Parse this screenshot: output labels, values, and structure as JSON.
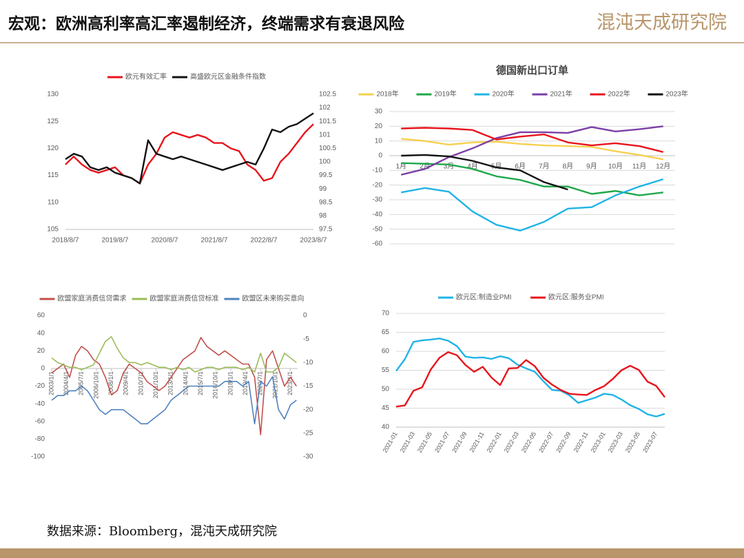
{
  "header": {
    "title": "宏观：欧洲高利率高汇率遏制经济，终端需求有衰退风险",
    "logo": "混沌天成研究院"
  },
  "footer": {
    "source": "数据来源：Bloomberg，混沌天成研究院"
  },
  "chart_data": [
    {
      "type": "line",
      "categories": [
        "2018/8/7",
        null,
        null,
        null,
        null,
        null,
        "2019/8/7",
        null,
        null,
        null,
        null,
        null,
        "2020/8/7",
        null,
        null,
        null,
        null,
        null,
        "2021/8/7",
        null,
        null,
        null,
        null,
        null,
        "2022/8/7",
        null,
        null,
        null,
        null,
        null,
        "2023/8/7"
      ],
      "series": [
        {
          "name": "欧元有效汇率",
          "color": "#e8141b",
          "values": [
            117,
            118.5,
            117,
            116,
            115.5,
            116,
            116.5,
            115,
            114.5,
            113.5,
            117,
            119,
            122,
            123,
            122.5,
            122,
            122.5,
            122,
            121,
            121,
            120,
            119.5,
            117,
            116,
            114,
            114.5,
            117.5,
            119,
            121,
            123,
            124.5
          ]
        },
        {
          "name": "高盛欧元区金融条件指数",
          "color": "#111111",
          "axis": "y2",
          "values": [
            100.1,
            100.3,
            100.2,
            99.8,
            99.7,
            99.8,
            99.6,
            99.5,
            99.4,
            99.2,
            100.8,
            100.3,
            100.2,
            100.1,
            100.2,
            100.1,
            100.0,
            99.9,
            99.8,
            99.7,
            99.8,
            99.9,
            100,
            99.9,
            100.5,
            101.2,
            101.1,
            101.3,
            101.4,
            101.6,
            101.8
          ]
        }
      ],
      "ylim": [
        105,
        130
      ],
      "yticks": [
        105,
        110,
        115,
        120,
        125,
        130
      ],
      "y2lim": [
        97.5,
        102.5
      ],
      "y2ticks": [
        97.5,
        98,
        98.5,
        99,
        99.5,
        100,
        100.5,
        101,
        101.5,
        102,
        102.5
      ],
      "grid": false
    },
    {
      "type": "line",
      "title": "德国新出口订单",
      "categories": [
        "1月",
        "2月",
        "3月",
        "4月",
        "5月",
        "6月",
        "7月",
        "8月",
        "9月",
        "10月",
        "11月",
        "12月"
      ],
      "series": [
        {
          "name": "2018年",
          "color": "#f7d04f",
          "values": [
            11.5,
            10,
            7.5,
            9,
            9.5,
            8,
            7,
            6.5,
            6,
            3,
            0.5,
            -2.5
          ]
        },
        {
          "name": "2019年",
          "color": "#1fa84a",
          "values": [
            -5,
            -5.5,
            -6,
            -9,
            -14,
            -16.5,
            -21,
            -21,
            -26,
            -24,
            -27,
            -25
          ]
        },
        {
          "name": "2020年",
          "color": "#1fb4e6",
          "values": [
            -25,
            -22,
            -24.5,
            -38,
            -47,
            -51,
            -45,
            -36,
            -35,
            -27,
            -21,
            -16
          ]
        },
        {
          "name": "2021年",
          "color": "#7b3fa8",
          "values": [
            -13,
            -9,
            -1,
            5,
            12,
            16,
            16,
            15.5,
            19.5,
            16.5,
            18,
            20
          ]
        },
        {
          "name": "2022年",
          "color": "#e8141b",
          "values": [
            18.5,
            19,
            18.5,
            17.5,
            11,
            13,
            14.5,
            9,
            7,
            8.5,
            6.5,
            2.5
          ]
        },
        {
          "name": "2023年",
          "color": "#111111",
          "values": [
            0,
            0.5,
            -0.5,
            -3.5,
            -8,
            -10,
            -18,
            -23,
            null,
            null,
            null,
            null
          ]
        }
      ],
      "ylim": [
        -60,
        30
      ],
      "yticks": [
        -60,
        -50,
        -40,
        -30,
        -20,
        -10,
        0,
        10,
        20,
        30
      ],
      "grid": true
    },
    {
      "type": "line",
      "x": [
        2003,
        2003.5,
        2004,
        2004.5,
        2005,
        2005.5,
        2006,
        2006.5,
        2007,
        2007.5,
        2008,
        2008.5,
        2009,
        2009.5,
        2010,
        2010.5,
        2011,
        2011.5,
        2012,
        2012.5,
        2013,
        2013.5,
        2014,
        2014.5,
        2015,
        2015.5,
        2016,
        2016.5,
        2017,
        2017.5,
        2018,
        2018.5,
        2019,
        2019.5,
        2020,
        2020.5,
        2021,
        2021.5,
        2022,
        2022.5,
        2023,
        2023.5
      ],
      "xlim": [
        2003,
        2023.6
      ],
      "xticks": [
        {
          "value": 2003,
          "label": "2003/1/1"
        },
        {
          "value": 2004.25,
          "label": "2004/4/1"
        },
        {
          "value": 2005.5,
          "label": "2005/7/1"
        },
        {
          "value": 2006.75,
          "label": "2006/10/1"
        },
        {
          "value": 2008,
          "label": "2008/1/1"
        },
        {
          "value": 2009.25,
          "label": "2009/4/1"
        },
        {
          "value": 2010.5,
          "label": "2010/7/1"
        },
        {
          "value": 2011.75,
          "label": "2011/10/1"
        },
        {
          "value": 2013,
          "label": "2013/1/1"
        },
        {
          "value": 2014.25,
          "label": "2014/4/1"
        },
        {
          "value": 2015.5,
          "label": "2015/7/1"
        },
        {
          "value": 2016.75,
          "label": "2016/10/1"
        },
        {
          "value": 2018,
          "label": "2018/1/1"
        },
        {
          "value": 2019.25,
          "label": "2019/4/1"
        },
        {
          "value": 2020.5,
          "label": "2020/7/1"
        },
        {
          "value": 2021.75,
          "label": "2021/10/1"
        },
        {
          "value": 2023,
          "label": "2023/1/1"
        }
      ],
      "series": [
        {
          "name": "欧盟家庭消费信贷需求",
          "color": "#c0504d",
          "values": [
            -5,
            0,
            5,
            -10,
            15,
            25,
            20,
            10,
            5,
            -10,
            -30,
            -25,
            -5,
            5,
            0,
            -5,
            -15,
            -20,
            -25,
            -20,
            -10,
            0,
            10,
            15,
            20,
            35,
            25,
            20,
            15,
            20,
            15,
            10,
            5,
            5,
            -10,
            -75,
            10,
            20,
            0,
            -20,
            -10,
            -20
          ]
        },
        {
          "name": "欧盟家庭消费信贷标准",
          "color": "#9bbb59",
          "axis": "y2",
          "values": [
            -9,
            -10,
            -10.5,
            -11,
            -11,
            -11.5,
            -11,
            -10.5,
            -8,
            -5.5,
            -4.5,
            -7,
            -9,
            -10,
            -10,
            -10.5,
            -10,
            -10.5,
            -11,
            -11,
            -11.5,
            -11,
            -11.5,
            -11,
            -12,
            -11.5,
            -11,
            -11,
            -11.5,
            -11,
            -11,
            -11,
            -11.5,
            -11,
            -12,
            -8,
            -12,
            -12,
            -11,
            -8,
            -9,
            -10
          ]
        },
        {
          "name": "欧盟区未来购买意向",
          "color": "#4f81bd",
          "axis": "y2",
          "values": [
            -18,
            -17,
            -17,
            -16,
            -16,
            -15,
            -16,
            -18,
            -20,
            -21,
            -20,
            -20,
            -20,
            -21,
            -22,
            -23,
            -23,
            -22,
            -21,
            -20,
            -18,
            -17,
            -16,
            -15,
            -15,
            -15,
            -15,
            -15,
            -15,
            -14,
            -14,
            -14,
            -15,
            -14,
            -23,
            -14,
            -15,
            -13,
            -20,
            -22,
            -19,
            -18
          ]
        }
      ],
      "ylim": [
        -100,
        60
      ],
      "yticks": [
        -100,
        -80,
        -60,
        -40,
        -20,
        0,
        20,
        40,
        60
      ],
      "y2lim": [
        -30,
        0
      ],
      "y2ticks": [
        -30,
        -25,
        -20,
        -15,
        -10,
        -5,
        0
      ],
      "grid": false
    },
    {
      "type": "line",
      "categories": [
        "2021-01",
        null,
        "2021-03",
        null,
        "2021-05",
        null,
        "2021-07",
        null,
        "2021-09",
        null,
        "2021-11",
        null,
        "2022-01",
        null,
        "2022-03",
        null,
        "2022-05",
        null,
        "2022-07",
        null,
        "2022-09",
        null,
        "2022-11",
        null,
        "2023-01",
        null,
        "2023-03",
        null,
        "2023-05",
        null,
        "2023-07",
        null
      ],
      "series": [
        {
          "name": "欧元区:制造业PMI",
          "color": "#1fb4e6",
          "values": [
            54.8,
            57.9,
            62.5,
            62.9,
            63.1,
            63.4,
            62.8,
            61.4,
            58.6,
            58.3,
            58.4,
            58.0,
            58.7,
            58.2,
            56.5,
            55.5,
            54.6,
            52.1,
            49.8,
            49.6,
            48.4,
            46.4,
            47.1,
            47.8,
            48.8,
            48.5,
            47.3,
            45.8,
            44.8,
            43.4,
            42.8,
            43.5
          ]
        },
        {
          "name": "欧元区:服务业PMI",
          "color": "#e8141b",
          "values": [
            45.4,
            45.7,
            49.6,
            50.5,
            55.2,
            58.3,
            59.8,
            59.0,
            56.4,
            54.6,
            55.9,
            53.1,
            51.1,
            55.5,
            55.6,
            57.7,
            56.1,
            53.0,
            51.2,
            49.8,
            48.8,
            48.6,
            48.5,
            49.8,
            50.8,
            52.7,
            55.0,
            56.2,
            55.1,
            52.0,
            50.9,
            47.9
          ]
        }
      ],
      "ylim": [
        40,
        70
      ],
      "yticks": [
        40,
        45,
        50,
        55,
        60,
        65,
        70
      ],
      "grid": true
    }
  ]
}
